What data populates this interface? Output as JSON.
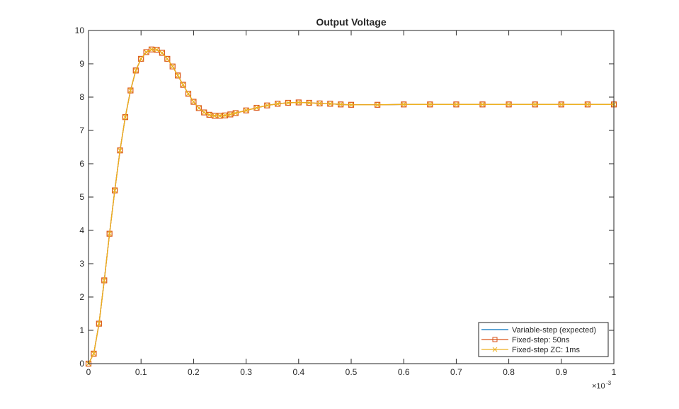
{
  "chart_data": {
    "type": "line",
    "title": "Output Voltage",
    "xlabel": "",
    "ylabel": "",
    "x_exponent_base": "×10",
    "x_exponent_power": "-3",
    "xlim": [
      0,
      1
    ],
    "ylim": [
      0,
      10
    ],
    "x_ticks": [
      "0",
      "0.1",
      "0.2",
      "0.3",
      "0.4",
      "0.5",
      "0.6",
      "0.7",
      "0.8",
      "0.9",
      "1"
    ],
    "y_ticks": [
      "0",
      "1",
      "2",
      "3",
      "4",
      "5",
      "6",
      "7",
      "8",
      "9",
      "10"
    ],
    "grid": false,
    "legend_position": "bottom-right",
    "x": [
      0,
      0.01,
      0.02,
      0.03,
      0.04,
      0.05,
      0.06,
      0.07,
      0.08,
      0.09,
      0.1,
      0.11,
      0.12,
      0.13,
      0.14,
      0.15,
      0.16,
      0.17,
      0.18,
      0.19,
      0.2,
      0.21,
      0.22,
      0.23,
      0.24,
      0.25,
      0.26,
      0.27,
      0.28,
      0.3,
      0.32,
      0.34,
      0.36,
      0.38,
      0.4,
      0.42,
      0.44,
      0.46,
      0.48,
      0.5,
      0.55,
      0.6,
      0.65,
      0.7,
      0.75,
      0.8,
      0.85,
      0.9,
      0.95,
      1.0
    ],
    "series": [
      {
        "name": "Variable-step (expected)",
        "color": "#0072bd",
        "marker": "none",
        "values": [
          0,
          0.3,
          1.2,
          2.5,
          3.9,
          5.2,
          6.4,
          7.4,
          8.2,
          8.8,
          9.15,
          9.35,
          9.43,
          9.42,
          9.33,
          9.15,
          8.92,
          8.65,
          8.37,
          8.1,
          7.86,
          7.67,
          7.54,
          7.47,
          7.44,
          7.44,
          7.45,
          7.48,
          7.52,
          7.6,
          7.68,
          7.75,
          7.8,
          7.83,
          7.84,
          7.83,
          7.81,
          7.8,
          7.78,
          7.77,
          7.77,
          7.78,
          7.78,
          7.78,
          7.78,
          7.78,
          7.78,
          7.78,
          7.78,
          7.78
        ]
      },
      {
        "name": "Fixed-step: 50ns",
        "color": "#d95319",
        "marker": "square",
        "values": [
          0,
          0.3,
          1.2,
          2.5,
          3.9,
          5.2,
          6.4,
          7.4,
          8.2,
          8.8,
          9.15,
          9.35,
          9.43,
          9.42,
          9.33,
          9.15,
          8.92,
          8.65,
          8.37,
          8.1,
          7.86,
          7.67,
          7.54,
          7.47,
          7.44,
          7.44,
          7.45,
          7.48,
          7.52,
          7.6,
          7.68,
          7.75,
          7.8,
          7.83,
          7.84,
          7.83,
          7.81,
          7.8,
          7.78,
          7.77,
          7.77,
          7.78,
          7.78,
          7.78,
          7.78,
          7.78,
          7.78,
          7.78,
          7.78,
          7.78
        ]
      },
      {
        "name": "Fixed-step ZC: 1ms",
        "color": "#edb120",
        "marker": "x",
        "values": [
          0,
          0.3,
          1.2,
          2.5,
          3.9,
          5.2,
          6.4,
          7.4,
          8.2,
          8.8,
          9.15,
          9.35,
          9.43,
          9.42,
          9.33,
          9.15,
          8.92,
          8.65,
          8.37,
          8.1,
          7.86,
          7.67,
          7.54,
          7.47,
          7.44,
          7.44,
          7.45,
          7.48,
          7.52,
          7.6,
          7.68,
          7.75,
          7.8,
          7.83,
          7.84,
          7.83,
          7.81,
          7.8,
          7.78,
          7.77,
          7.77,
          7.78,
          7.78,
          7.78,
          7.78,
          7.78,
          7.78,
          7.78,
          7.78,
          7.78
        ]
      }
    ]
  }
}
